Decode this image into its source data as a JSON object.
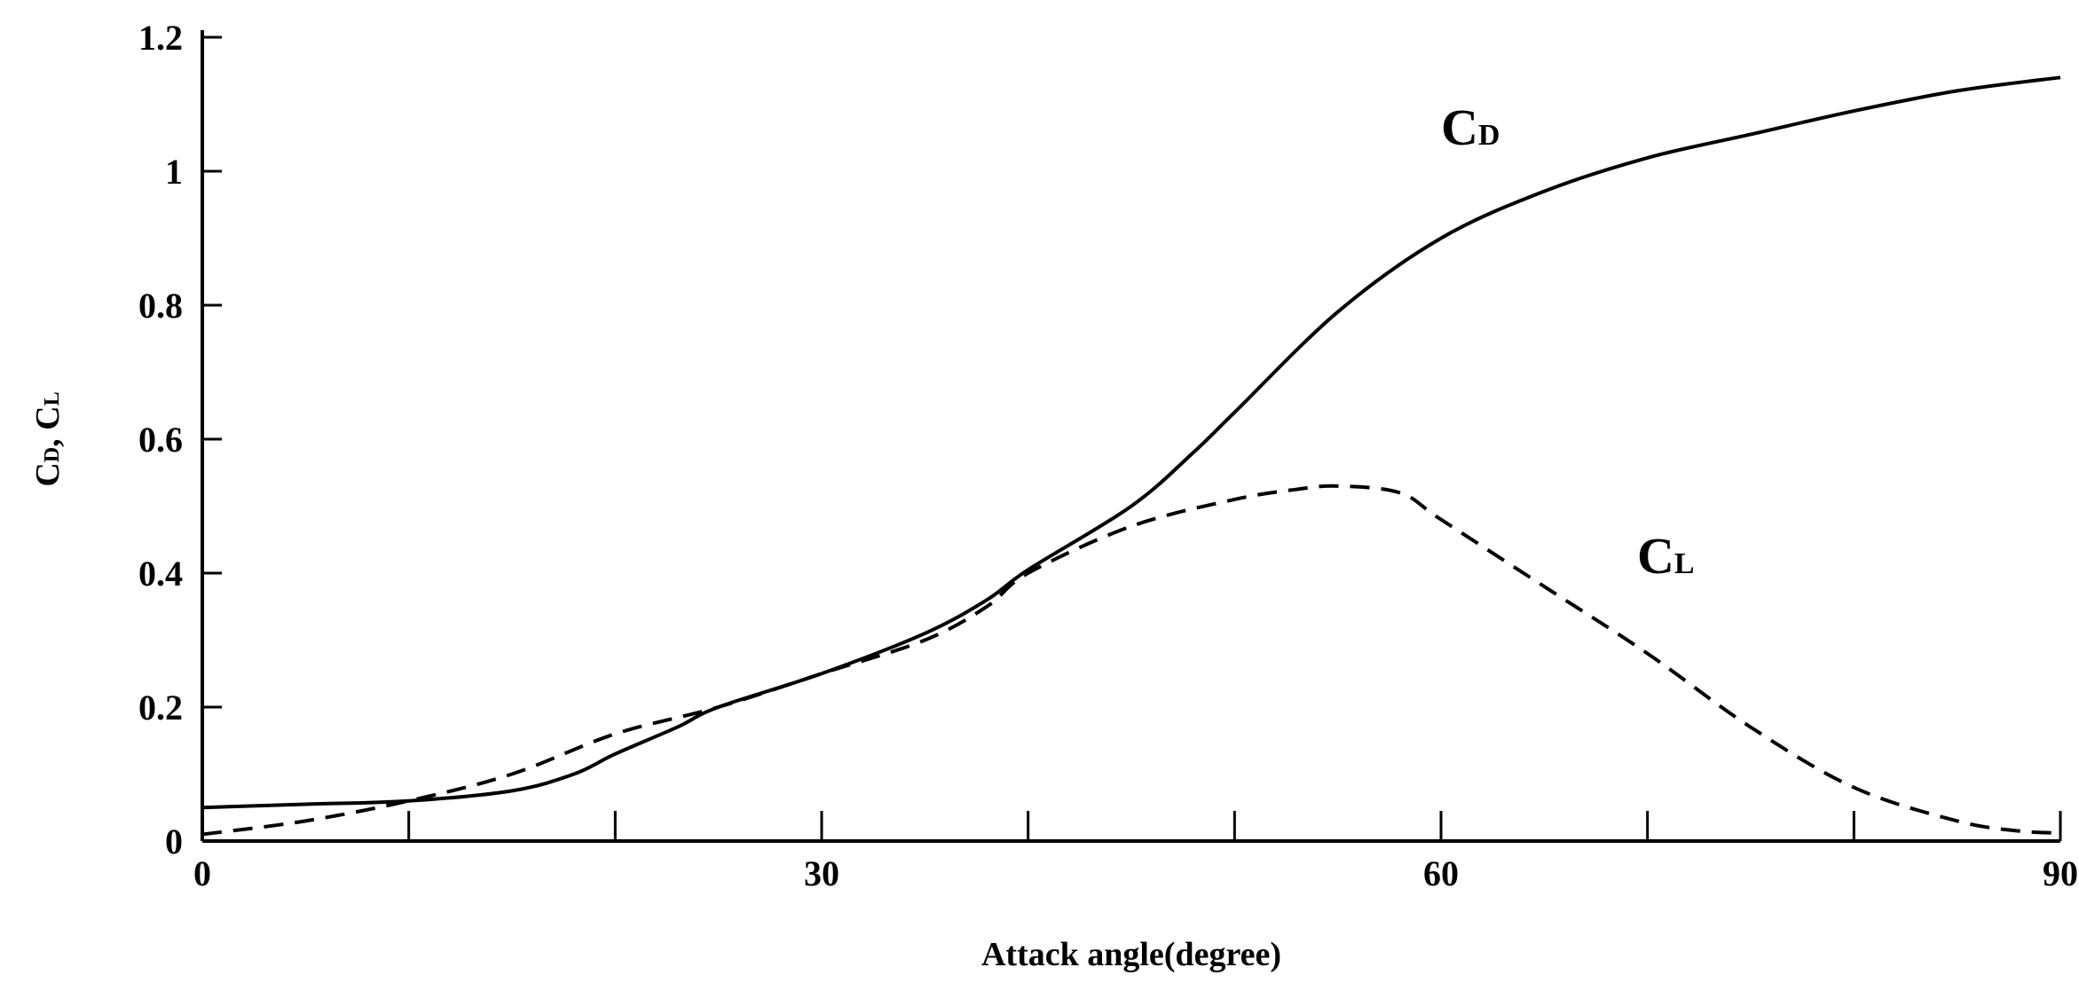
{
  "chart_data": {
    "type": "line",
    "title": "",
    "xlabel": "Attack angle(degree)",
    "ylabel": {
      "parts": [
        "C",
        "D",
        ", C",
        "L"
      ]
    },
    "xlim": [
      0,
      90
    ],
    "ylim": [
      0,
      1.2
    ],
    "x_ticks": [
      0,
      30,
      60,
      90
    ],
    "x_tick_labels": [
      "0",
      "30",
      "60",
      "90"
    ],
    "x_minor_ticks": [
      10,
      20,
      40,
      50,
      70,
      80
    ],
    "y_ticks": [
      0,
      0.2,
      0.4,
      0.6,
      0.8,
      1.0,
      1.2
    ],
    "y_tick_labels": [
      "0",
      "0.2",
      "0.4",
      "0.6",
      "0.8",
      "1",
      "1.2"
    ],
    "grid": false,
    "series": [
      {
        "name": "CD",
        "label_main": "C",
        "label_sub": "D",
        "style": "solid",
        "color": "#000000",
        "x": [
          0,
          5,
          10,
          15,
          18,
          20,
          23,
          25,
          30,
          35,
          38,
          40,
          45,
          48,
          50,
          55,
          60,
          65,
          70,
          75,
          80,
          85,
          90
        ],
        "y": [
          0.05,
          0.055,
          0.06,
          0.075,
          0.1,
          0.13,
          0.17,
          0.2,
          0.25,
          0.31,
          0.36,
          0.405,
          0.5,
          0.58,
          0.64,
          0.79,
          0.9,
          0.97,
          1.02,
          1.055,
          1.09,
          1.12,
          1.14
        ]
      },
      {
        "name": "CL",
        "label_main": "C",
        "label_sub": "L",
        "style": "dashed",
        "color": "#000000",
        "x": [
          0,
          5,
          10,
          15,
          20,
          25,
          30,
          35,
          38,
          40,
          45,
          50,
          53,
          55,
          58,
          60,
          65,
          70,
          75,
          80,
          85,
          88,
          90
        ],
        "y": [
          0.01,
          0.03,
          0.06,
          0.1,
          0.16,
          0.2,
          0.25,
          0.3,
          0.35,
          0.4,
          0.47,
          0.51,
          0.525,
          0.53,
          0.52,
          0.48,
          0.38,
          0.28,
          0.17,
          0.08,
          0.03,
          0.015,
          0.012
        ]
      }
    ],
    "series_labels_at": [
      {
        "series": "CD",
        "x": 60,
        "y": 1.04
      },
      {
        "series": "CL",
        "x": 69.5,
        "y": 0.4
      }
    ]
  }
}
